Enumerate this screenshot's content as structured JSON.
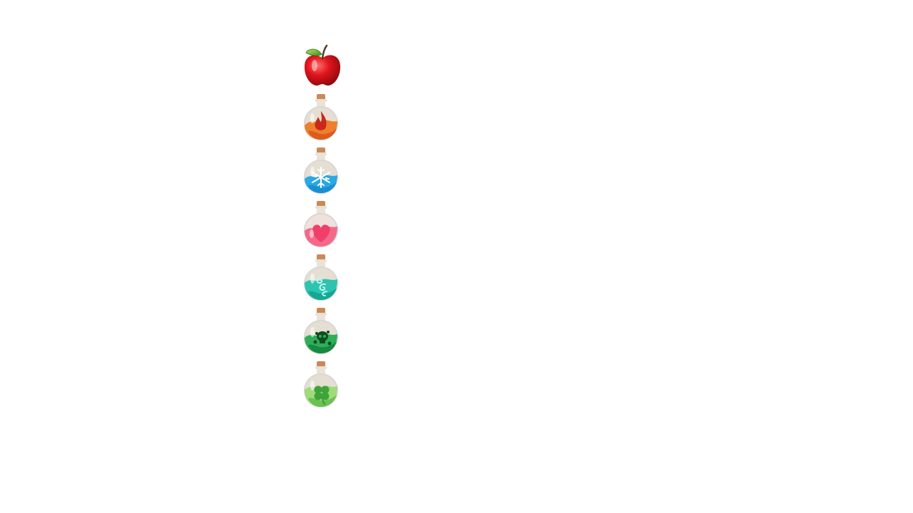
{
  "inventory": {
    "items": [
      {
        "name": "apple",
        "kind": "fruit",
        "color": "#d9141c"
      },
      {
        "name": "fire-potion",
        "kind": "potion",
        "symbol": "flame",
        "liquid": "#ef7f2c",
        "liquid_dark": "#e05a1e",
        "symbol_color": "#c9281d"
      },
      {
        "name": "ice-potion",
        "kind": "potion",
        "symbol": "snowflake",
        "liquid": "#2aa9e6",
        "liquid_dark": "#1a8fd0",
        "symbol_color": "#ffffff"
      },
      {
        "name": "love-potion",
        "kind": "potion",
        "symbol": "heart",
        "liquid": "#f4698a",
        "liquid_dark": "#e8416a",
        "symbol_color": "#f23f6a"
      },
      {
        "name": "wind-potion",
        "kind": "potion",
        "symbol": "swirl",
        "liquid": "#2cc4b0",
        "liquid_dark": "#14a893",
        "symbol_color": "#bff5ee"
      },
      {
        "name": "poison-potion",
        "kind": "potion",
        "symbol": "skull",
        "liquid": "#2fae5a",
        "liquid_dark": "#168a40",
        "symbol_color": "#0e4d22"
      },
      {
        "name": "luck-potion",
        "kind": "potion",
        "symbol": "clover",
        "liquid": "#9fdb7a",
        "liquid_dark": "#6cc24f",
        "symbol_color": "#3fa33b"
      }
    ]
  }
}
